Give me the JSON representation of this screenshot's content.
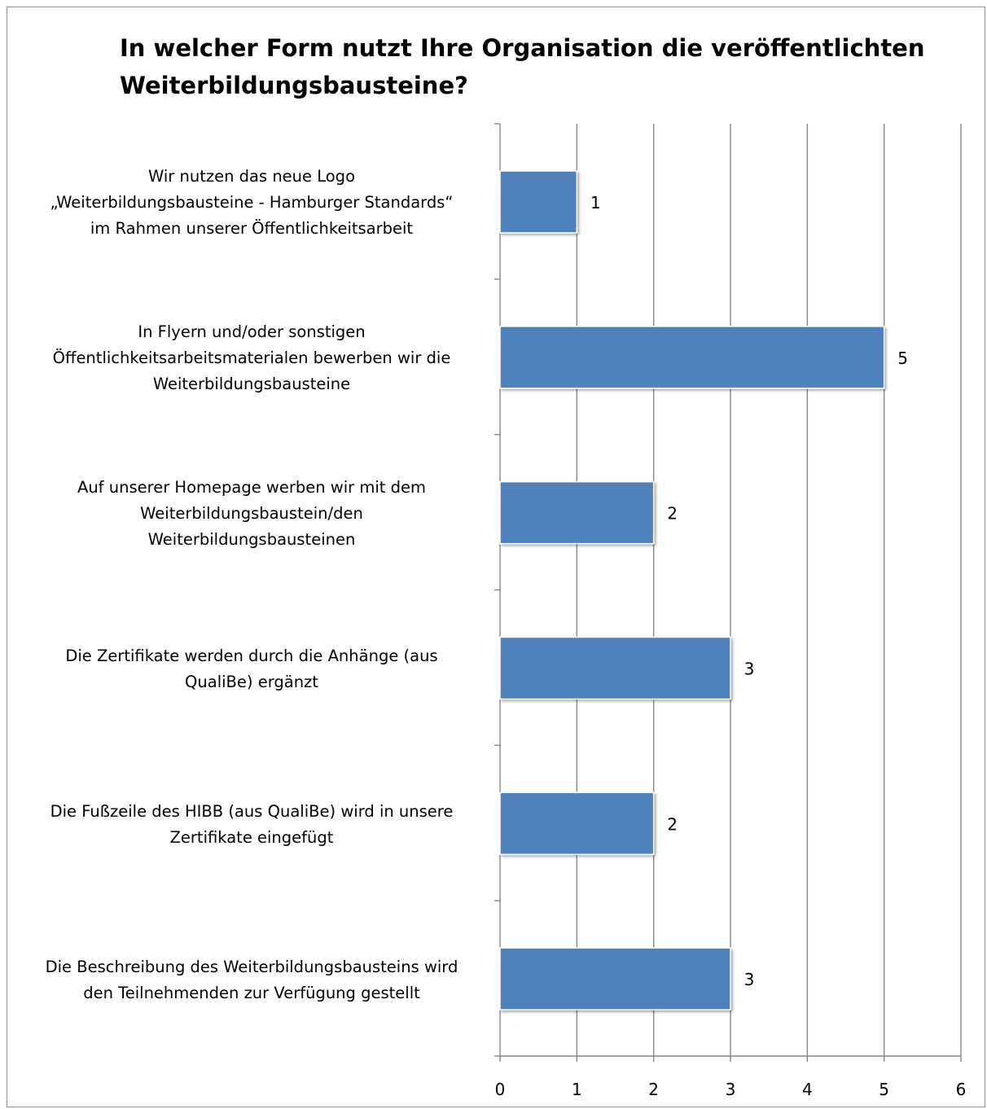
{
  "chart_data": {
    "type": "bar",
    "orientation": "horizontal",
    "title": "In welcher Form nutzt Ihre Organisation die veröffentlichten Weiterbildungsbausteine?",
    "xlabel": "",
    "ylabel": "",
    "categories": [
      "Wir nutzen das neue Logo „Weiterbildungsbausteine - Hamburger Standards“ im Rahmen unserer Öffentlichkeitsarbeit",
      "In Flyern und/oder sonstigen Öffentlichkeitsarbeitsmaterialen bewerben wir die Weiterbildungsbausteine",
      "Auf unserer Homepage werben wir mit dem Weiterbildungsbaustein/den Weiterbildungsbausteinen",
      "Die Zertifikate werden durch die Anhänge (aus QualiBe) ergänzt",
      "Die Fußzeile des HIBB (aus QualiBe) wird in unsere Zertifikate eingefügt",
      "Die Beschreibung des Weiterbildungsbausteins wird den Teilnehmenden zur Verfügung gestellt"
    ],
    "category_lines": [
      [
        "Wir nutzen das neue Logo",
        "„Weiterbildungsbausteine - Hamburger Standards“",
        "im Rahmen unserer Öffentlichkeitsarbeit"
      ],
      [
        "In Flyern und/oder sonstigen",
        "Öffentlichkeitsarbeitsmaterialen bewerben wir die",
        "Weiterbildungsbausteine"
      ],
      [
        "Auf unserer Homepage werben wir mit dem",
        "Weiterbildungsbaustein/den",
        "Weiterbildungsbausteinen"
      ],
      [
        "Die Zertifikate werden durch die Anhänge (aus",
        "QualiBe) ergänzt"
      ],
      [
        "Die Fußzeile des HIBB (aus QualiBe) wird in unsere",
        "Zertifikate eingefügt"
      ],
      [
        "Die Beschreibung des Weiterbildungsbausteins wird",
        "den Teilnehmenden zur Verfügung gestellt"
      ]
    ],
    "values": [
      1,
      5,
      2,
      3,
      2,
      3
    ],
    "data_labels": [
      "1",
      "5",
      "2",
      "3",
      "2",
      "3"
    ],
    "xlim": [
      0,
      6
    ],
    "x_ticks": [
      "0",
      "1",
      "2",
      "3",
      "4",
      "5",
      "6"
    ],
    "grid": "vertical major gridlines",
    "legend": "none",
    "colors": {
      "bar": "#4f81bd",
      "gridline": "#868686",
      "frame": "#8c8c8c"
    }
  }
}
